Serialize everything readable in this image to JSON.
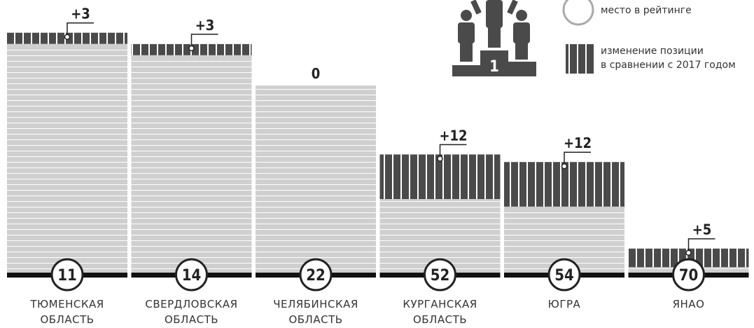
{
  "chart_data": {
    "type": "bar",
    "categories": [
      "ТЮМЕНСКАЯ\nОБЛАСТЬ",
      "СВЕРДЛОВСКАЯ\nОБЛАСТЬ",
      "ЧЕЛЯБИНСКАЯ\nОБЛАСТЬ",
      "КУРГАНСКАЯ\nОБЛАСТЬ",
      "ЮГРА",
      "ЯНАО"
    ],
    "series": [
      {
        "name": "место в рейтинге",
        "color": "#cfcfcf",
        "values": [
          11,
          14,
          22,
          52,
          54,
          70
        ]
      },
      {
        "name": "изменение позиции\nв сравнении с 2017 годом",
        "color": "#4a4a4a",
        "values": [
          3,
          3,
          0,
          12,
          12,
          5
        ],
        "value_labels": [
          "+3",
          "+3",
          "0",
          "+12",
          "+12",
          "+5"
        ]
      }
    ],
    "podium_label": "1"
  }
}
